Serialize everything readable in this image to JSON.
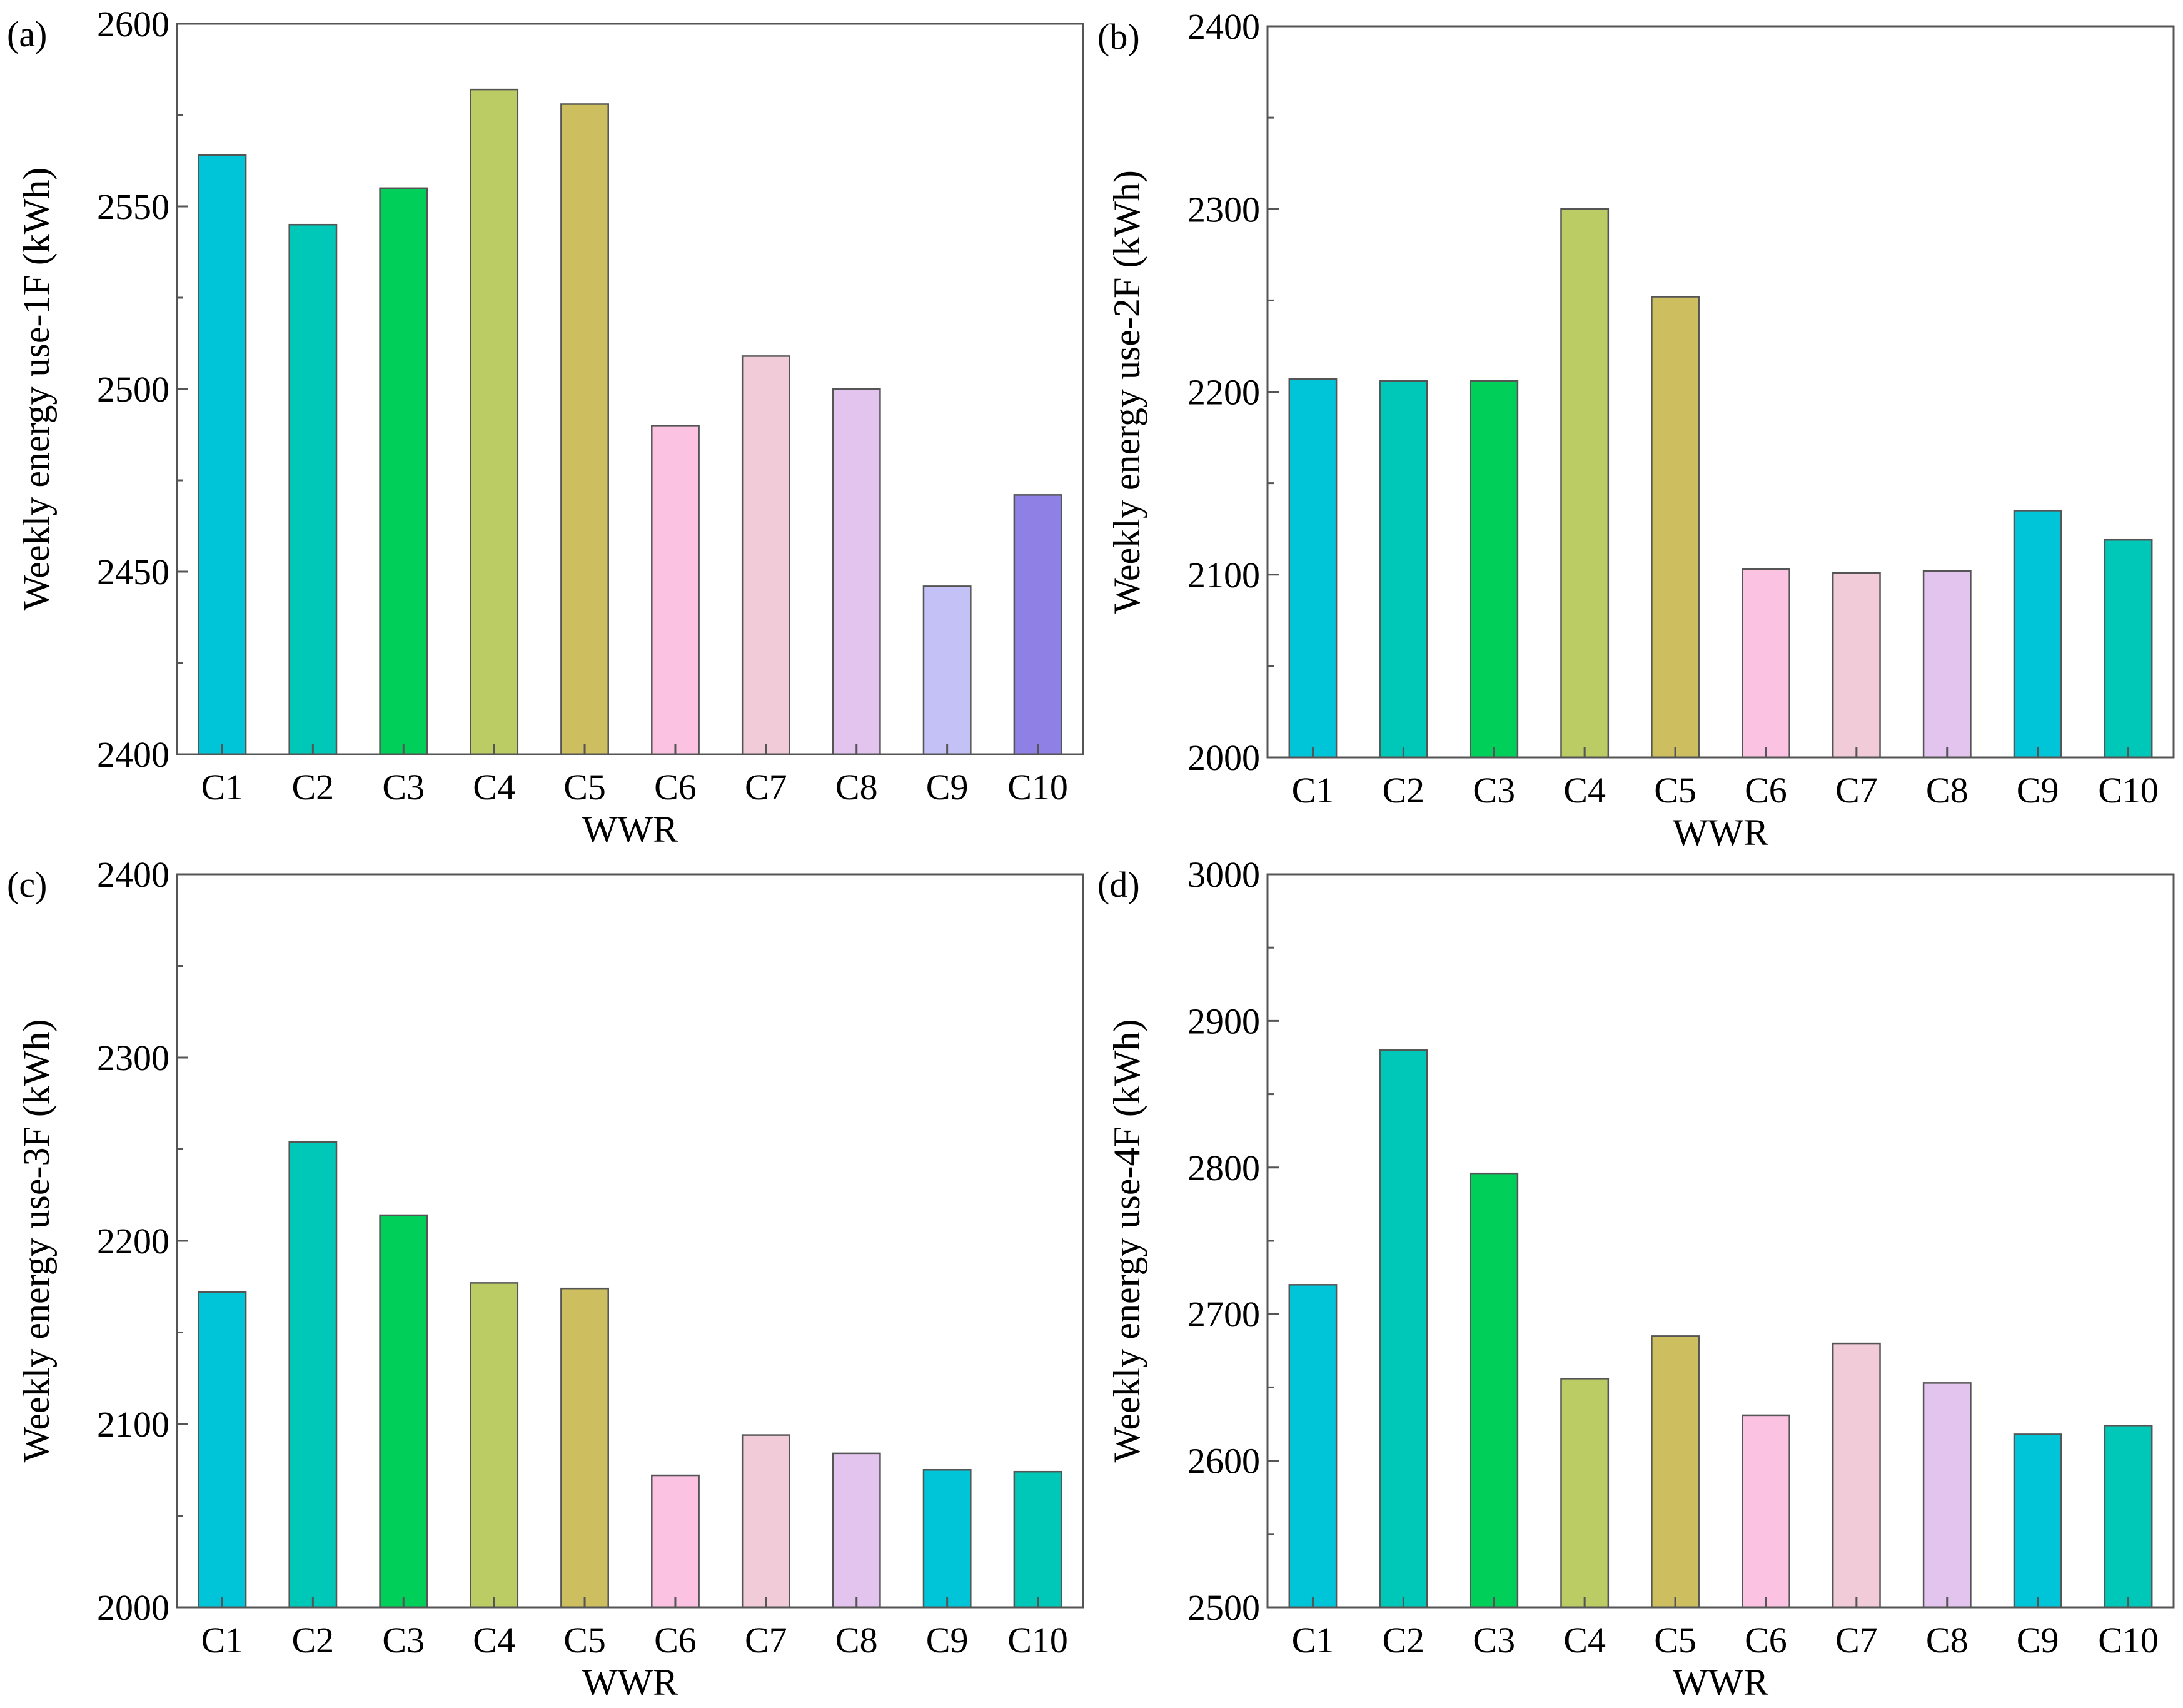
{
  "chart_data": [
    {
      "type": "bar",
      "panel_label": "(a)",
      "xlabel": "WWR",
      "ylabel": "Weekly energy use-1F (kWh)",
      "ylim": [
        2400,
        2600
      ],
      "yticks": [
        2400,
        2450,
        2500,
        2550,
        2600
      ],
      "categories": [
        "C1",
        "C2",
        "C3",
        "C4",
        "C5",
        "C6",
        "C7",
        "C8",
        "C9",
        "C10"
      ],
      "values": [
        2564,
        2545,
        2555,
        2582,
        2578,
        2490,
        2509,
        2500,
        2446,
        2471
      ],
      "colors": [
        "#00c5d9",
        "#00c8b8",
        "#00d05a",
        "#bccc64",
        "#cdbe60",
        "#fbc2e2",
        "#f1ccd8",
        "#e3c4ef",
        "#c4c1f6",
        "#8e80e4"
      ]
    },
    {
      "type": "bar",
      "panel_label": "(b)",
      "xlabel": "WWR",
      "ylabel": "Weekly energy use-2F (kWh)",
      "ylim": [
        2000,
        2400
      ],
      "yticks": [
        2000,
        2100,
        2200,
        2300,
        2400
      ],
      "categories": [
        "C1",
        "C2",
        "C3",
        "C4",
        "C5",
        "C6",
        "C7",
        "C8",
        "C9",
        "C10"
      ],
      "values": [
        2207,
        2206,
        2206,
        2300,
        2252,
        2103,
        2101,
        2102,
        2135,
        2119
      ],
      "colors": [
        "#00c5d9",
        "#00c8b8",
        "#00d05a",
        "#bccc64",
        "#cdbe60",
        "#fbc2e2",
        "#f1ccd8",
        "#e3c4ef",
        "#00c5d9",
        "#00c8b8"
      ]
    },
    {
      "type": "bar",
      "panel_label": "(c)",
      "xlabel": "WWR",
      "ylabel": "Weekly energy use-3F (kWh)",
      "ylim": [
        2000,
        2400
      ],
      "yticks": [
        2000,
        2100,
        2200,
        2300,
        2400
      ],
      "categories": [
        "C1",
        "C2",
        "C3",
        "C4",
        "C5",
        "C6",
        "C7",
        "C8",
        "C9",
        "C10"
      ],
      "values": [
        2172,
        2254,
        2214,
        2177,
        2174,
        2072,
        2094,
        2084,
        2075,
        2074
      ],
      "colors": [
        "#00c5d9",
        "#00c8b8",
        "#00d05a",
        "#bccc64",
        "#cdbe60",
        "#fbc2e2",
        "#f1ccd8",
        "#e3c4ef",
        "#00c5d9",
        "#00c8b8"
      ]
    },
    {
      "type": "bar",
      "panel_label": "(d)",
      "xlabel": "WWR",
      "ylabel": "Weekly energy use-4F (kWh)",
      "ylim": [
        2500,
        3000
      ],
      "yticks": [
        2500,
        2600,
        2700,
        2800,
        2900,
        3000
      ],
      "categories": [
        "C1",
        "C2",
        "C3",
        "C4",
        "C5",
        "C6",
        "C7",
        "C8",
        "C9",
        "C10"
      ],
      "values": [
        2720,
        2880,
        2796,
        2656,
        2685,
        2631,
        2680,
        2653,
        2618,
        2624
      ],
      "colors": [
        "#00c5d9",
        "#00c8b8",
        "#00d05a",
        "#bccc64",
        "#cdbe60",
        "#fbc2e2",
        "#f1ccd8",
        "#e3c4ef",
        "#00c5d9",
        "#00c8b8"
      ]
    }
  ]
}
